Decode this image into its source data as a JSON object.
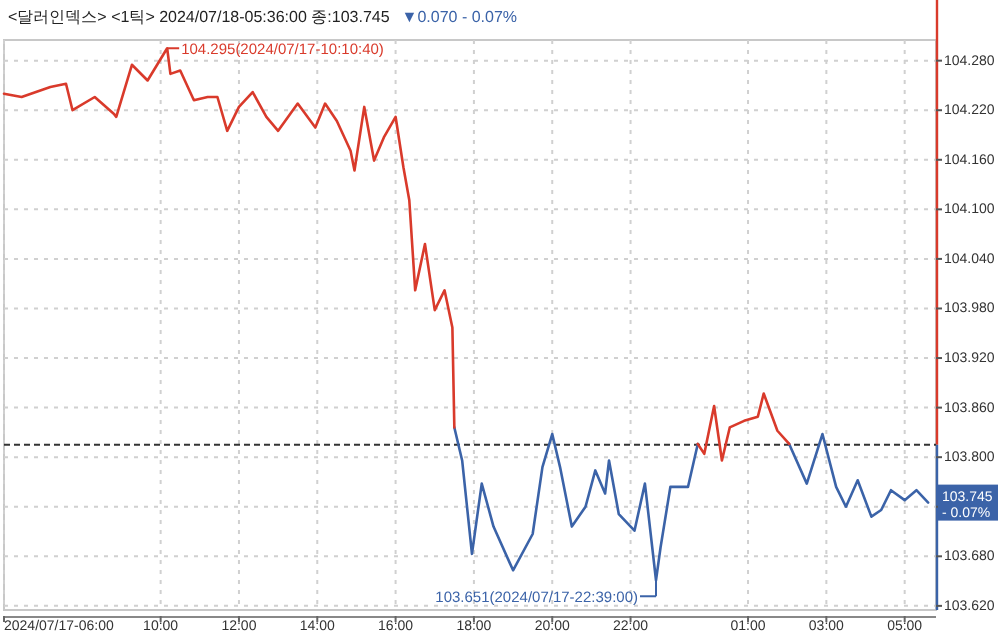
{
  "chart_data": {
    "type": "line",
    "title": "<달러인덱스> <1틱> 2024/07/18-05:36:00 종:103.745",
    "subtitle": "▼0.070  - 0.07%",
    "x": [
      "2024-07-17T06:00",
      "2024-07-17T06:27",
      "2024-07-17T07:11",
      "2024-07-17T07:35",
      "2024-07-17T07:45",
      "2024-07-17T08:19",
      "2024-07-17T08:49",
      "2024-07-17T08:52",
      "2024-07-17T09:16",
      "2024-07-17T09:40",
      "2024-07-17T10:00",
      "2024-07-17T10:10",
      "2024-07-17T10:15",
      "2024-07-17T10:30",
      "2024-07-17T10:51",
      "2024-07-17T11:12",
      "2024-07-17T11:27",
      "2024-07-17T11:42",
      "2024-07-17T12:00",
      "2024-07-17T12:21",
      "2024-07-17T12:42",
      "2024-07-17T13:00",
      "2024-07-17T13:30",
      "2024-07-17T13:57",
      "2024-07-17T14:12",
      "2024-07-17T14:30",
      "2024-07-17T14:51",
      "2024-07-17T14:57",
      "2024-07-17T15:12",
      "2024-07-17T15:27",
      "2024-07-17T15:42",
      "2024-07-17T16:00",
      "2024-07-17T16:12",
      "2024-07-17T16:21",
      "2024-07-17T16:30",
      "2024-07-17T16:45",
      "2024-07-17T17:00",
      "2024-07-17T17:15",
      "2024-07-17T17:27",
      "2024-07-17T17:30",
      "2024-07-17T17:42",
      "2024-07-17T17:57",
      "2024-07-17T18:12",
      "2024-07-17T18:30",
      "2024-07-17T19:00",
      "2024-07-17T19:30",
      "2024-07-17T19:45",
      "2024-07-17T20:00",
      "2024-07-17T20:12",
      "2024-07-17T20:30",
      "2024-07-17T20:51",
      "2024-07-17T21:06",
      "2024-07-17T21:21",
      "2024-07-17T21:27",
      "2024-07-17T21:42",
      "2024-07-17T22:06",
      "2024-07-17T22:22",
      "2024-07-17T22:39",
      "2024-07-17T22:46",
      "2024-07-17T23:01",
      "2024-07-17T23:28",
      "2024-07-17T23:43",
      "2024-07-17T23:53",
      "2024-07-18T00:08",
      "2024-07-18T00:20",
      "2024-07-18T00:32",
      "2024-07-18T00:54",
      "2024-07-18T01:15",
      "2024-07-18T01:24",
      "2024-07-18T01:45",
      "2024-07-18T02:03",
      "2024-07-18T02:30",
      "2024-07-18T02:54",
      "2024-07-18T03:15",
      "2024-07-18T03:30",
      "2024-07-18T03:48",
      "2024-07-18T04:09",
      "2024-07-18T04:24",
      "2024-07-18T04:39",
      "2024-07-18T05:00",
      "2024-07-18T05:18",
      "2024-07-18T05:36"
    ],
    "series": [
      {
        "color": "#d93a2b",
        "values": [
          104.24,
          104.236,
          104.248,
          104.252,
          104.22,
          104.236,
          104.215,
          104.212,
          104.275,
          104.256,
          104.282,
          104.295,
          104.264,
          104.268,
          104.232,
          104.236,
          104.236,
          104.195,
          104.224,
          104.242,
          104.212,
          104.195,
          104.228,
          104.199,
          104.228,
          104.207,
          104.171,
          104.147,
          104.224,
          104.159,
          104.187,
          104.212,
          104.151,
          104.111,
          104.002,
          104.058,
          103.978,
          104.002,
          103.957,
          103.836,
          null,
          null,
          null,
          null,
          null,
          null,
          null,
          null,
          null,
          null,
          null,
          null,
          null,
          null,
          null,
          null,
          null,
          null,
          null,
          null,
          null,
          103.816,
          103.804,
          103.862,
          103.796,
          103.836,
          103.844,
          103.849,
          103.877,
          103.832,
          103.816,
          null,
          null,
          null,
          null,
          null,
          null,
          null,
          null,
          null,
          null,
          null
        ]
      },
      {
        "color": "#3b63a8",
        "values": [
          null,
          null,
          null,
          null,
          null,
          null,
          null,
          null,
          null,
          null,
          null,
          null,
          null,
          null,
          null,
          null,
          null,
          null,
          null,
          null,
          null,
          null,
          null,
          null,
          null,
          null,
          null,
          null,
          null,
          null,
          null,
          null,
          null,
          null,
          null,
          null,
          null,
          null,
          null,
          103.836,
          103.796,
          103.683,
          103.768,
          103.716,
          103.663,
          103.707,
          103.788,
          103.828,
          103.788,
          103.716,
          103.74,
          103.784,
          103.756,
          103.796,
          103.731,
          103.711,
          103.768,
          103.651,
          103.691,
          103.764,
          103.764,
          103.816,
          null,
          null,
          null,
          null,
          null,
          null,
          null,
          null,
          103.816,
          103.768,
          103.828,
          103.764,
          103.74,
          103.772,
          103.728,
          103.736,
          103.76,
          103.748,
          103.76,
          103.745
        ]
      }
    ],
    "xlim": [
      "2024-07-17T06:00",
      "2024-07-18T05:48"
    ],
    "xticks": [
      {
        "value": "2024-07-17T06:00",
        "label": "2024/07/17-06:00"
      },
      {
        "value": "2024-07-17T10:00",
        "label": "10:00"
      },
      {
        "value": "2024-07-17T12:00",
        "label": "12:00"
      },
      {
        "value": "2024-07-17T14:00",
        "label": "14:00"
      },
      {
        "value": "2024-07-17T16:00",
        "label": "16:00"
      },
      {
        "value": "2024-07-17T18:00",
        "label": "18:00"
      },
      {
        "value": "2024-07-17T20:00",
        "label": "20:00"
      },
      {
        "value": "2024-07-17T22:00",
        "label": "22:00"
      },
      {
        "value": "2024-07-18T01:00",
        "label": "01:00"
      },
      {
        "value": "2024-07-18T03:00",
        "label": "03:00"
      },
      {
        "value": "2024-07-18T05:00",
        "label": "05:00"
      }
    ],
    "ylim": [
      103.615,
      104.305
    ],
    "yticks": [
      {
        "value": 103.62,
        "label": "103.620"
      },
      {
        "value": 103.68,
        "label": "103.680"
      },
      {
        "value": 103.74,
        "label": null
      },
      {
        "value": 103.8,
        "label": "103.800"
      },
      {
        "value": 103.86,
        "label": "103.860"
      },
      {
        "value": 103.92,
        "label": "103.920"
      },
      {
        "value": 103.98,
        "label": "103.980"
      },
      {
        "value": 104.04,
        "label": "104.040"
      },
      {
        "value": 104.1,
        "label": "104.100"
      },
      {
        "value": 104.16,
        "label": "104.160"
      },
      {
        "value": 104.22,
        "label": "104.220"
      },
      {
        "value": 104.28,
        "label": "104.280"
      }
    ],
    "ref_lines": [
      {
        "axis": "y",
        "value": 103.815,
        "color": "#333333",
        "line_style": "dashed"
      }
    ],
    "annotations": [
      {
        "text": "104.295(2024/07/17-10:10:40)",
        "x": "2024-07-17T10:10",
        "y": 104.295
      },
      {
        "text": "103.651(2024/07/17-22:39:00)",
        "x": "2024-07-17T22:39",
        "y": 103.651
      },
      {
        "text": "103.745\n- 0.07%",
        "x": "2024-07-18T05:36",
        "y": 103.745
      }
    ],
    "grid": true
  }
}
